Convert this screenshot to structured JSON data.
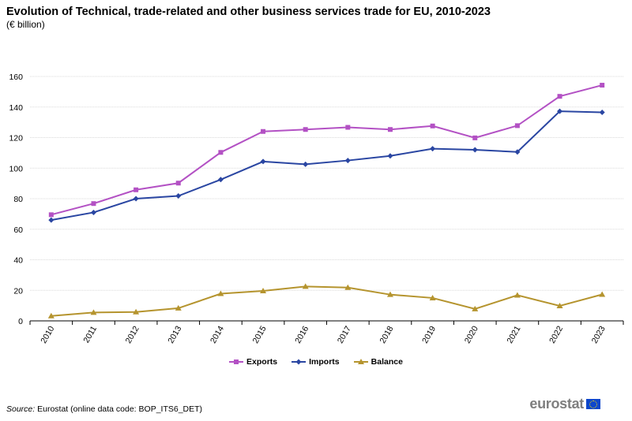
{
  "chart_data": {
    "type": "line",
    "title": "Evolution of Technical, trade-related and other business services trade for EU, 2010-2023",
    "subtitle": "(€ billion)",
    "categories": [
      "2010",
      "2011",
      "2012",
      "2013",
      "2014",
      "2015",
      "2016",
      "2017",
      "2018",
      "2019",
      "2020",
      "2021",
      "2022",
      "2023"
    ],
    "ylim": [
      0,
      160
    ],
    "yticks": [
      0,
      20,
      40,
      60,
      80,
      100,
      120,
      140,
      160
    ],
    "grid": true,
    "legend_position": "bottom",
    "series": [
      {
        "name": "Exports",
        "color": "#b351c4",
        "marker": "square",
        "values": [
          69.5,
          76.8,
          85.8,
          90.2,
          110.3,
          124.0,
          125.3,
          126.7,
          125.3,
          127.6,
          119.8,
          127.8,
          147.0,
          154.3
        ]
      },
      {
        "name": "Imports",
        "color": "#2a46a2",
        "marker": "diamond",
        "values": [
          66.0,
          71.0,
          80.0,
          81.8,
          92.5,
          104.3,
          102.5,
          105.0,
          108.0,
          112.7,
          112.0,
          110.6,
          137.2,
          136.5
        ]
      },
      {
        "name": "Balance",
        "color": "#b5942e",
        "marker": "triangle",
        "values": [
          3.2,
          5.5,
          5.8,
          8.3,
          17.8,
          19.6,
          22.5,
          21.8,
          17.2,
          15.0,
          7.8,
          16.8,
          9.8,
          17.3
        ]
      }
    ]
  },
  "source": {
    "label": "Source:",
    "text": " Eurostat (online data code: BOP_ITS6_DET)"
  },
  "logo": {
    "text": "eurostat"
  }
}
